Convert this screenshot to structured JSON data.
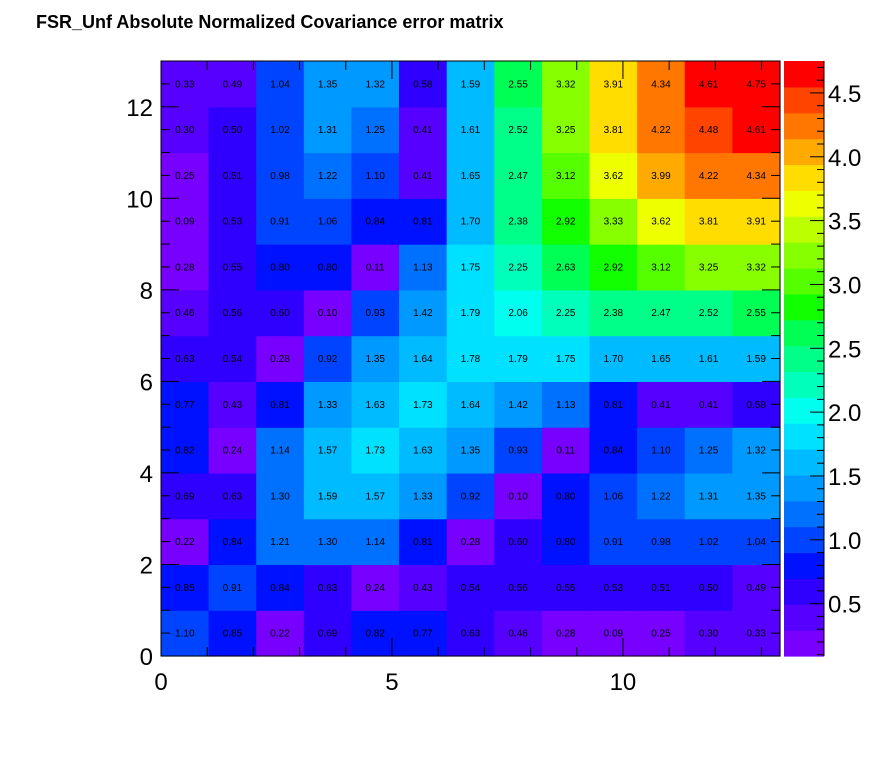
{
  "chart_data": {
    "type": "heatmap",
    "title": "FSR_Unf Absolute Normalized Covariance error matrix",
    "xlabel": "",
    "ylabel": "",
    "x_bin_edges": [
      0,
      1.0308,
      2.0615,
      3.0923,
      4.1231,
      5.1538,
      6.1846,
      7.2154,
      8.2462,
      9.2769,
      10.3077,
      11.3385,
      12.3692,
      13.4
    ],
    "y_bin_edges": [
      0,
      1,
      2,
      3,
      4,
      5,
      6,
      7,
      8,
      9,
      10,
      11,
      12,
      13
    ],
    "xlim": [
      0,
      13.4
    ],
    "ylim": [
      0,
      13
    ],
    "xticks": [
      0,
      5,
      10
    ],
    "yticks": [
      0,
      2,
      4,
      6,
      8,
      10,
      12
    ],
    "values": [
      [
        1.1,
        0.85,
        0.22,
        0.69,
        0.82,
        0.77,
        0.63,
        0.46,
        0.28,
        0.09,
        0.25,
        0.3,
        0.33
      ],
      [
        0.85,
        0.91,
        0.84,
        0.63,
        0.24,
        0.43,
        0.54,
        0.56,
        0.55,
        0.53,
        0.51,
        0.5,
        0.49
      ],
      [
        0.22,
        0.84,
        1.21,
        1.3,
        1.14,
        0.81,
        0.28,
        0.6,
        0.8,
        0.91,
        0.98,
        1.02,
        1.04
      ],
      [
        0.69,
        0.63,
        1.3,
        1.59,
        1.57,
        1.33,
        0.92,
        0.1,
        0.8,
        1.06,
        1.22,
        1.31,
        1.35
      ],
      [
        0.82,
        0.24,
        1.14,
        1.57,
        1.73,
        1.63,
        1.35,
        0.93,
        0.11,
        0.84,
        1.1,
        1.25,
        1.32
      ],
      [
        0.77,
        0.43,
        0.81,
        1.33,
        1.63,
        1.73,
        1.64,
        1.42,
        1.13,
        0.81,
        0.41,
        0.41,
        0.58
      ],
      [
        0.63,
        0.54,
        0.28,
        0.92,
        1.35,
        1.64,
        1.78,
        1.79,
        1.75,
        1.7,
        1.65,
        1.61,
        1.59
      ],
      [
        0.46,
        0.56,
        0.6,
        0.1,
        0.93,
        1.42,
        1.79,
        2.06,
        2.25,
        2.38,
        2.47,
        2.52,
        2.55
      ],
      [
        0.28,
        0.55,
        0.8,
        0.8,
        0.11,
        1.13,
        1.75,
        2.25,
        2.63,
        2.92,
        3.12,
        3.25,
        3.32
      ],
      [
        0.09,
        0.53,
        0.91,
        1.06,
        0.84,
        0.81,
        1.7,
        2.38,
        2.92,
        3.33,
        3.62,
        3.81,
        3.91
      ],
      [
        0.25,
        0.51,
        0.98,
        1.22,
        1.1,
        0.41,
        1.65,
        2.47,
        3.12,
        3.62,
        3.99,
        4.22,
        4.34
      ],
      [
        0.3,
        0.5,
        1.02,
        1.31,
        1.25,
        0.41,
        1.61,
        2.52,
        3.25,
        3.81,
        4.22,
        4.48,
        4.61
      ],
      [
        0.33,
        0.49,
        1.04,
        1.35,
        1.32,
        0.58,
        1.59,
        2.55,
        3.32,
        3.91,
        4.34,
        4.61,
        4.75
      ]
    ],
    "zlim": [
      0.09,
      4.75
    ],
    "colorbar_ticks": [
      0.5,
      1.0,
      1.5,
      2.0,
      2.5,
      3.0,
      3.5,
      4.0,
      4.5
    ],
    "colorbar_tick_labels": [
      "0.5",
      "1.0",
      "1.5",
      "2.0",
      "2.5",
      "3.0",
      "3.5",
      "4.0",
      "4.5"
    ],
    "colormap": [
      "#7700ff",
      "#5600ff",
      "#3000ff",
      "#0011ff",
      "#0044ff",
      "#0070ff",
      "#0099ff",
      "#00bbff",
      "#00e1ff",
      "#00ffee",
      "#00ffbb",
      "#00ff88",
      "#00ff55",
      "#11ff00",
      "#55ff00",
      "#88ff00",
      "#bbff00",
      "#eeff00",
      "#ffdd00",
      "#ffaa00",
      "#ff7700",
      "#ff4400",
      "#ff0000"
    ],
    "grid": false,
    "legend": "colorbar-right"
  }
}
